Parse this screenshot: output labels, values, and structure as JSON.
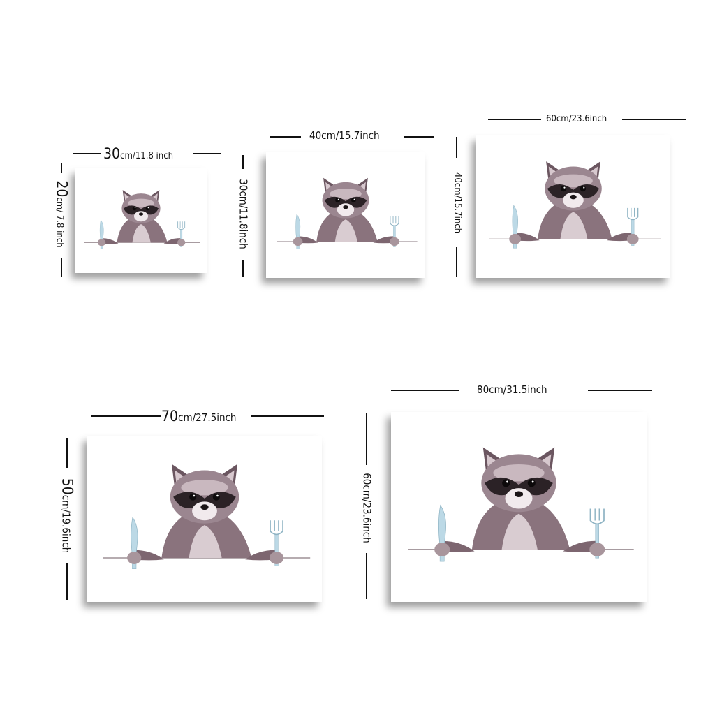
{
  "posters": [
    {
      "width_label_num": "30",
      "width_label_rest": "cm/11.8 inch",
      "height_label_num": "20",
      "height_label_rest": "cm/ 7.8 inch"
    },
    {
      "width_label": "40cm/15.7inch",
      "height_label": "30cm/11.8inch"
    },
    {
      "width_label": "60cm/23.6inch",
      "height_label": "40cm/15.7inch"
    },
    {
      "width_label_num": "70",
      "width_label_rest": "cm/27.5inch",
      "height_label_num": "50",
      "height_label_rest": "cm/19.6inch"
    },
    {
      "width_label": "80cm/31.5inch",
      "height_label": "60cm/23.6inch"
    }
  ],
  "artwork": {
    "subject": "raccoon-holding-knife-and-fork",
    "colors": {
      "fur": "#7d6670",
      "fur_light": "#c9b8bf",
      "mask": "#2b2226",
      "utensil": "#bcd9e6",
      "background": "#ffffff"
    }
  }
}
